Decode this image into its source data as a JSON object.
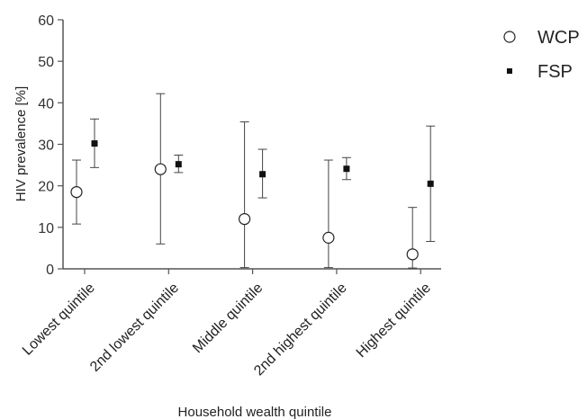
{
  "chart_data": {
    "type": "scatter",
    "error_bars": true,
    "categories": [
      "Lowest quintile",
      "2nd lowest quintile",
      "Middle quintile",
      "2nd highest quintile",
      "Highest quintile"
    ],
    "xlabel": "Household wealth quintile",
    "ylabel": "HIV prevalence [%]",
    "ylim": [
      0,
      60
    ],
    "yticks": [
      0,
      10,
      20,
      30,
      40,
      50,
      60
    ],
    "grid": false,
    "legend_position": "top-right",
    "series": [
      {
        "name": "WCP",
        "marker": "open-circle",
        "values": [
          18.5,
          24,
          12,
          7.5,
          3.5
        ],
        "lower": [
          10.8,
          6,
          0.3,
          0.3,
          0.2
        ],
        "upper": [
          26.2,
          42.2,
          35.4,
          26.2,
          14.8
        ]
      },
      {
        "name": "FSP",
        "marker": "filled-square",
        "values": [
          30.2,
          25.2,
          22.8,
          24.1,
          20.5
        ],
        "lower": [
          24.4,
          23.2,
          17.1,
          21.5,
          6.6
        ],
        "upper": [
          36.1,
          27.4,
          28.8,
          26.8,
          34.4
        ]
      }
    ]
  }
}
